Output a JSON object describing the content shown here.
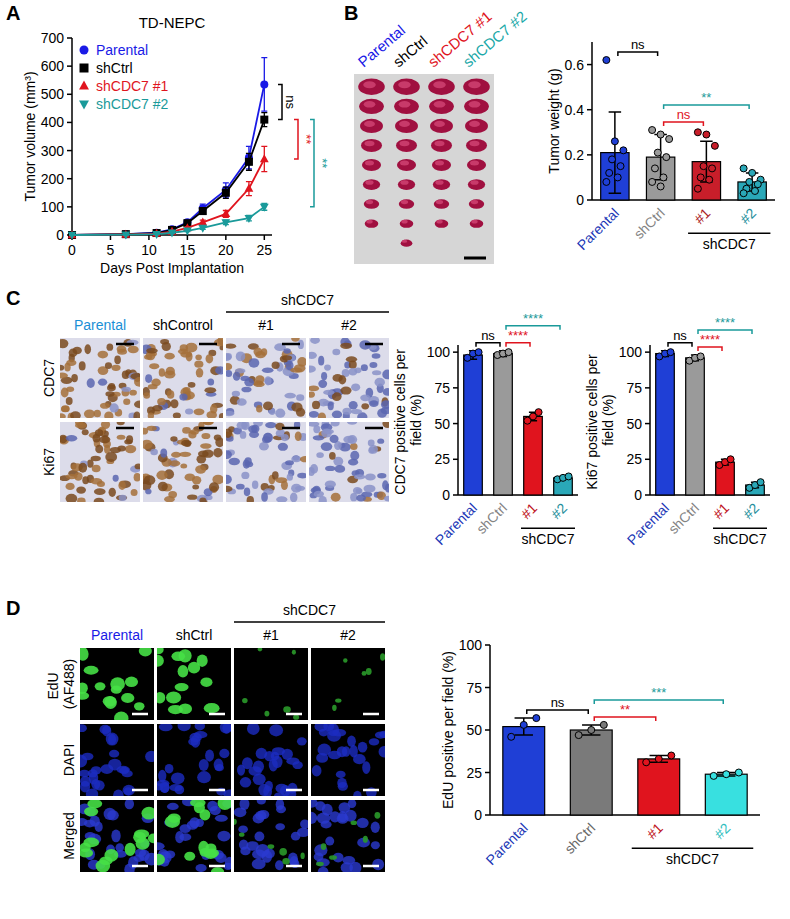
{
  "chart_data": [
    {
      "type": "line",
      "panel_label": "A",
      "title": "TD-NEPC",
      "x_label": "Days Post Implantation",
      "y_label": "Tumor volume (mm³)",
      "x": [
        0,
        7,
        11,
        13,
        15,
        17,
        20,
        23,
        25
      ],
      "series": [
        {
          "name": "Parental",
          "color": "#1a1ae6",
          "marker": "circle",
          "values": [
            0,
            3,
            8,
            20,
            45,
            95,
            160,
            275,
            535
          ],
          "errors": [
            0,
            1,
            2,
            4,
            8,
            15,
            25,
            40,
            95
          ]
        },
        {
          "name": "shCtrl",
          "color": "#000000",
          "marker": "square",
          "values": [
            0,
            3,
            7,
            18,
            42,
            85,
            150,
            260,
            410
          ],
          "errors": [
            0,
            1,
            2,
            4,
            8,
            12,
            20,
            30,
            25
          ]
        },
        {
          "name": "shCDC7 #1",
          "color": "#e0141e",
          "marker": "triangle",
          "values": [
            0,
            2,
            5,
            12,
            25,
            45,
            75,
            165,
            270
          ],
          "errors": [
            0,
            1,
            1,
            3,
            5,
            8,
            12,
            25,
            45
          ]
        },
        {
          "name": "shCDC7 #2",
          "color": "#1a9a9a",
          "marker": "triangle-down",
          "values": [
            0,
            1,
            3,
            8,
            15,
            25,
            45,
            60,
            100
          ],
          "errors": [
            0,
            1,
            1,
            2,
            3,
            5,
            8,
            10,
            12
          ]
        }
      ],
      "xlim": [
        0,
        26
      ],
      "xticks": [
        0,
        5,
        10,
        15,
        20,
        25
      ],
      "ylim": [
        0,
        700
      ],
      "yticks": [
        0,
        100,
        200,
        300,
        400,
        500,
        600,
        700
      ],
      "grid": false,
      "legend": "top-left",
      "comparisons": [
        {
          "from": "Parental",
          "to": "shCtrl",
          "label": "ns",
          "color": "#000000"
        },
        {
          "from": "shCtrl",
          "to": "shCDC7 #1",
          "label": "**",
          "color": "#e0141e"
        },
        {
          "from": "shCtrl",
          "to": "shCDC7 #2",
          "label": "**",
          "color": "#1a9a9a"
        }
      ]
    },
    {
      "type": "bar",
      "y_label": "Tumor weight (g)",
      "categories": [
        "Parental",
        "shCtrl",
        "#1",
        "#2"
      ],
      "values": [
        0.21,
        0.19,
        0.17,
        0.08
      ],
      "errors": [
        0.18,
        0.1,
        0.09,
        0.04
      ],
      "points": [
        [
          0.62,
          0.26,
          0.22,
          0.18,
          0.15,
          0.12,
          0.1,
          0.08
        ],
        [
          0.31,
          0.29,
          0.27,
          0.21,
          0.19,
          0.14,
          0.1,
          0.08,
          0.06
        ],
        [
          0.3,
          0.29,
          0.24,
          0.15,
          0.14,
          0.1,
          0.09,
          0.05
        ],
        [
          0.14,
          0.12,
          0.09,
          0.08,
          0.07,
          0.05,
          0.04,
          0.03
        ]
      ],
      "colors": [
        "#1f3fd6",
        "#9a9a9a",
        "#c81e2a",
        "#2aa8b8"
      ],
      "ylim": [
        0,
        0.7
      ],
      "yticks": [
        0,
        0.2,
        0.4,
        0.6
      ],
      "grid": false,
      "groups": [
        {
          "label": "shCDC7",
          "members": [
            "#1",
            "#2"
          ]
        }
      ],
      "comparisons": [
        {
          "from": "Parental",
          "to": "shCtrl",
          "label": "ns",
          "color": "#000000"
        },
        {
          "from": "shCtrl",
          "to": "#1",
          "label": "ns",
          "color": "#e0141e"
        },
        {
          "from": "shCtrl",
          "to": "#2",
          "label": "**",
          "color": "#1a9a9a"
        }
      ]
    },
    {
      "type": "bar",
      "y_label": "CDC7 positive cells per field (%)",
      "categories": [
        "Parental",
        "shCtrl",
        "#1",
        "#2"
      ],
      "values": [
        98,
        99,
        55,
        12
      ],
      "errors": [
        3,
        2,
        3,
        1
      ],
      "points": [
        [
          96,
          99,
          100
        ],
        [
          98,
          99,
          100
        ],
        [
          52,
          55,
          58
        ],
        [
          11,
          12,
          13
        ]
      ],
      "colors": [
        "#1f3fd6",
        "#9a9a9a",
        "#e0141e",
        "#2aa8b8"
      ],
      "ylim": [
        0,
        105
      ],
      "yticks": [
        0,
        25,
        50,
        75,
        100
      ],
      "grid": false,
      "groups": [
        {
          "label": "shCDC7",
          "members": [
            "#1",
            "#2"
          ]
        }
      ],
      "comparisons": [
        {
          "from": "Parental",
          "to": "shCtrl",
          "label": "ns",
          "color": "#000000"
        },
        {
          "from": "shCtrl",
          "to": "#1",
          "label": "****",
          "color": "#e0141e"
        },
        {
          "from": "shCtrl",
          "to": "#2",
          "label": "****",
          "color": "#1a9a9a"
        }
      ]
    },
    {
      "type": "bar",
      "y_label": "Ki67 positive cells per field (%)",
      "categories": [
        "Parental",
        "shCtrl",
        "#1",
        "#2"
      ],
      "values": [
        99,
        96,
        23,
        7
      ],
      "errors": [
        2,
        2,
        2,
        2
      ],
      "points": [
        [
          97,
          99,
          100
        ],
        [
          94,
          96,
          97
        ],
        [
          21,
          23,
          25
        ],
        [
          5,
          7,
          9
        ]
      ],
      "colors": [
        "#1f3fd6",
        "#9a9a9a",
        "#e0141e",
        "#2aa8b8"
      ],
      "ylim": [
        0,
        105
      ],
      "yticks": [
        0,
        25,
        50,
        75,
        100
      ],
      "grid": false,
      "groups": [
        {
          "label": "shCDC7",
          "members": [
            "#1",
            "#2"
          ]
        }
      ],
      "comparisons": [
        {
          "from": "Parental",
          "to": "shCtrl",
          "label": "ns",
          "color": "#000000"
        },
        {
          "from": "shCtrl",
          "to": "#1",
          "label": "****",
          "color": "#e0141e"
        },
        {
          "from": "shCtrl",
          "to": "#2",
          "label": "****",
          "color": "#1a9a9a"
        }
      ]
    },
    {
      "type": "bar",
      "y_label": "EdU positive per field (%)",
      "categories": [
        "Parental",
        "shCtrl",
        "#1",
        "#2"
      ],
      "values": [
        52,
        50,
        33,
        24
      ],
      "errors": [
        5,
        3,
        2,
        1
      ],
      "points": [
        [
          46,
          53,
          57
        ],
        [
          47,
          50,
          53
        ],
        [
          31,
          33,
          35
        ],
        [
          23,
          24,
          25
        ]
      ],
      "colors": [
        "#1f3fd6",
        "#7a7a7a",
        "#e0141e",
        "#38e0e0"
      ],
      "ylim": [
        0,
        100
      ],
      "yticks": [
        0,
        25,
        50,
        75,
        100
      ],
      "grid": false,
      "groups": [
        {
          "label": "shCDC7",
          "members": [
            "#1",
            "#2"
          ]
        }
      ],
      "comparisons": [
        {
          "from": "Parental",
          "to": "shCtrl",
          "label": "ns",
          "color": "#000000"
        },
        {
          "from": "shCtrl",
          "to": "#1",
          "label": "**",
          "color": "#e0141e"
        },
        {
          "from": "shCtrl",
          "to": "#2",
          "label": "***",
          "color": "#1a9a9a"
        }
      ]
    }
  ],
  "image_panels": [
    {
      "panel_label": "B",
      "column_labels": [
        "Parental",
        "shCtrl",
        "shCDC7 #1",
        "shCDC7 #2"
      ],
      "colors": [
        "#1a1ae6",
        "#000000",
        "#e0141e",
        "#1aa8a8"
      ]
    },
    {
      "panel_label": "C",
      "column_labels": [
        "Parental",
        "shControl",
        "#1",
        "#2"
      ],
      "colors": [
        "#1a8fd6",
        "#000000",
        "#000000",
        "#000000"
      ],
      "row_labels": [
        "CDC7",
        "Ki67"
      ],
      "groups": [
        {
          "label": "shCDC7",
          "members": [
            "#1",
            "#2"
          ]
        }
      ]
    },
    {
      "panel_label": "D",
      "column_labels": [
        "Parental",
        "shCtrl",
        "#1",
        "#2"
      ],
      "colors": [
        "#1a1ae6",
        "#000000",
        "#000000",
        "#000000"
      ],
      "row_labels": [
        "EdU (AF488)",
        "DAPI",
        "Merged"
      ],
      "groups": [
        {
          "label": "shCDC7",
          "members": [
            "#1",
            "#2"
          ]
        }
      ]
    }
  ]
}
